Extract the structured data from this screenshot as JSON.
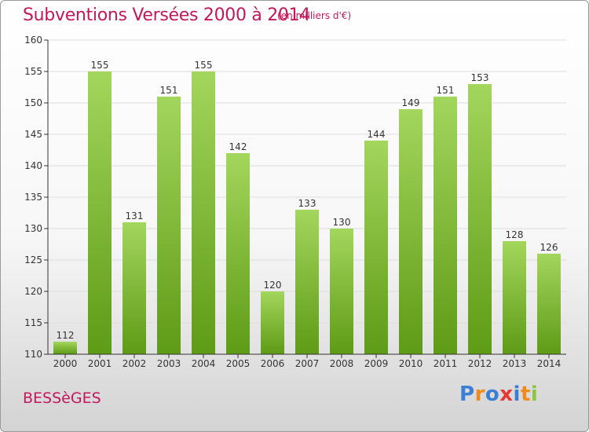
{
  "header": {
    "title": "Subventions Versées 2000 à 2014",
    "unit_note": "(en milliers d'€)"
  },
  "footer": {
    "commune": "BESSèGES",
    "brand": "Proxiti",
    "brand_colors": [
      "#3b7fd4",
      "#f08a1c",
      "#3b7fd4",
      "#e53935",
      "#3b7fd4",
      "#f08a1c",
      "#8dc63f"
    ]
  },
  "colors": {
    "title": "#c2185b",
    "bar_light": "#a3d65c",
    "bar_dark": "#5e9b16",
    "grid": "#dddddd",
    "axis": "#333333"
  },
  "chart_data": {
    "type": "bar",
    "title": "Subventions Versées 2000 à 2014",
    "subtitle": "(en milliers d'€)",
    "xlabel": "",
    "ylabel": "",
    "categories": [
      "2000",
      "2001",
      "2002",
      "2003",
      "2004",
      "2005",
      "2006",
      "2007",
      "2008",
      "2009",
      "2010",
      "2011",
      "2012",
      "2013",
      "2014"
    ],
    "values": [
      112,
      155,
      131,
      151,
      155,
      142,
      120,
      133,
      130,
      144,
      149,
      151,
      153,
      128,
      126
    ],
    "data_labels": [
      "112",
      "155",
      "131",
      "151",
      "155",
      "142",
      "120",
      "133",
      "130",
      "144",
      "149",
      "151",
      "153",
      "128",
      "126"
    ],
    "ylim": [
      110,
      160
    ],
    "yticks": [
      "110",
      "115",
      "120",
      "125",
      "130",
      "135",
      "140",
      "145",
      "150",
      "155",
      "160"
    ],
    "grid": true
  }
}
